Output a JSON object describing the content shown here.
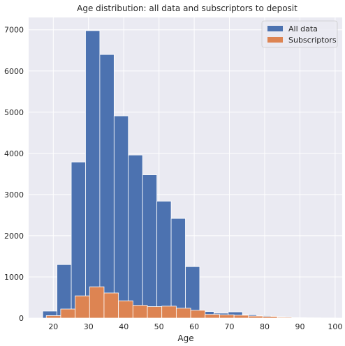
{
  "chart_data": {
    "type": "bar",
    "title": "Age distribution: all data and subscriptors to deposit",
    "xlabel": "Age",
    "ylabel": "",
    "xlim": [
      13,
      102
    ],
    "ylim": [
      0,
      7300
    ],
    "x_ticks": [
      20,
      30,
      40,
      50,
      60,
      70,
      80,
      90,
      100
    ],
    "y_ticks": [
      0,
      1000,
      2000,
      3000,
      4000,
      5000,
      6000,
      7000
    ],
    "grid": true,
    "legend_position": "top-right",
    "series": [
      {
        "name": "All data",
        "color": "#4c72b0",
        "bin_edges": [
          17,
          21.05,
          25.1,
          29.15,
          33.2,
          37.25,
          41.3,
          45.35,
          49.4,
          53.45,
          57.5,
          61.55,
          65.6,
          69.65,
          73.7,
          77.75,
          81.8,
          85.85,
          89.9,
          93.95,
          98
        ],
        "values": [
          170,
          1300,
          3790,
          6980,
          6400,
          4910,
          3960,
          3480,
          2840,
          2420,
          1250,
          160,
          120,
          150,
          80,
          60,
          30,
          10,
          5,
          3
        ]
      },
      {
        "name": "Subscriptors",
        "color": "#dd8452",
        "bin_edges": [
          18,
          22.1,
          26.2,
          30.3,
          34.4,
          38.5,
          42.6,
          46.7,
          50.8,
          54.9,
          59,
          63.1,
          67.2,
          71.3,
          75.4,
          79.5,
          83.6,
          87.7,
          91.8,
          95.9,
          100
        ],
        "values": [
          60,
          220,
          540,
          760,
          610,
          420,
          310,
          280,
          290,
          240,
          190,
          90,
          80,
          70,
          50,
          40,
          20,
          8,
          5,
          3
        ]
      }
    ]
  }
}
